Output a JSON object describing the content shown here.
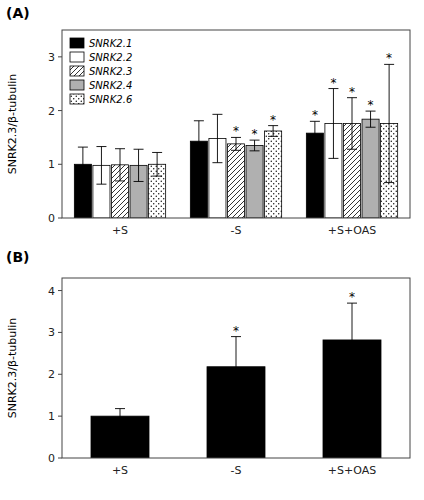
{
  "chart_data": [
    {
      "type": "bar",
      "title": "(A)",
      "ylabel": "SNRK2.3/β-tubulin",
      "categories": [
        "+S",
        "-S",
        "+S+OAS"
      ],
      "series": [
        {
          "name": "SNRK2.1",
          "color": "#000000",
          "values": [
            1.0,
            1.43,
            1.58
          ],
          "errors": [
            0.32,
            0.38,
            0.22
          ],
          "annotations": [
            null,
            null,
            "*"
          ]
        },
        {
          "name": "SNRK2.2",
          "color": "#ffffff",
          "values": [
            0.98,
            1.48,
            1.76
          ],
          "errors": [
            0.35,
            0.45,
            0.65
          ],
          "annotations": [
            null,
            null,
            "*"
          ]
        },
        {
          "name": "SNRK2.3",
          "color": "#ffffff",
          "values": [
            0.99,
            1.38,
            1.76
          ],
          "errors": [
            0.3,
            0.12,
            0.48
          ],
          "annotations": [
            null,
            "*",
            "*"
          ]
        },
        {
          "name": "SNRK2.4",
          "color": "#b0b0b0",
          "values": [
            0.98,
            1.35,
            1.84
          ],
          "errors": [
            0.3,
            0.1,
            0.15
          ],
          "annotations": [
            null,
            "*",
            "*"
          ]
        },
        {
          "name": "SNRK2.6",
          "color": "#ffffff",
          "values": [
            1.0,
            1.62,
            1.76
          ],
          "errors": [
            0.22,
            0.1,
            1.1
          ],
          "annotations": [
            null,
            "*",
            "*"
          ]
        }
      ],
      "ylim": [
        0,
        3.5
      ],
      "yticks": [
        0,
        1,
        2,
        3
      ],
      "legend": "upper left"
    },
    {
      "type": "bar",
      "title": "(B)",
      "ylabel": "SNRK2.3/β-tubulin",
      "categories": [
        "+S",
        "-S",
        "+S+OAS"
      ],
      "values": [
        1.0,
        2.18,
        2.82
      ],
      "errors": [
        0.18,
        0.72,
        0.88
      ],
      "annotations": [
        null,
        "*",
        "*"
      ],
      "color": "#000000",
      "ylim": [
        0,
        4.3
      ],
      "yticks": [
        0,
        1,
        2,
        3,
        4
      ]
    }
  ]
}
